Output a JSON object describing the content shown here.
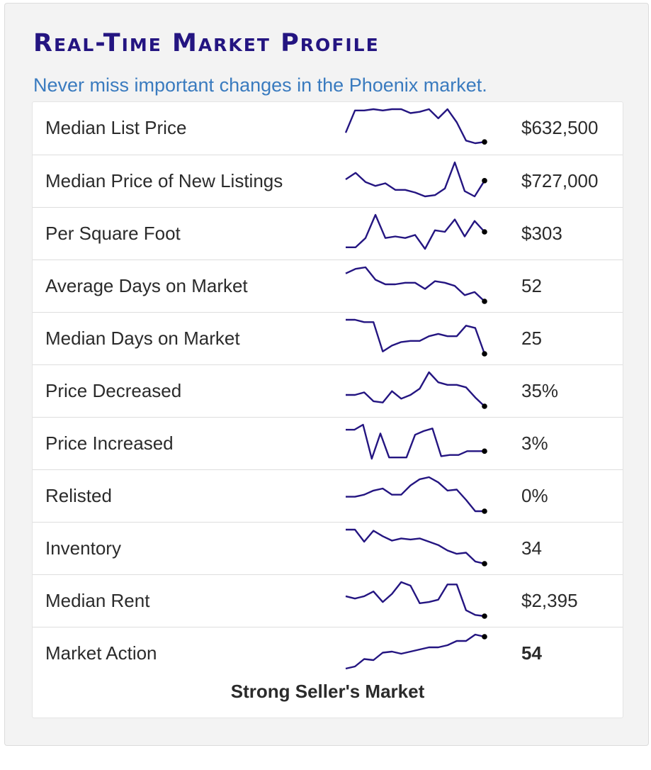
{
  "header": {
    "title": "Real-Time Market Profile",
    "subtitle": "Never miss important changes in the Phoenix market."
  },
  "line_color": "#241581",
  "rows": [
    {
      "label": "Median List Price",
      "value": "$632,500",
      "trend": [
        15,
        32,
        32,
        33,
        32,
        33,
        33,
        30,
        31,
        33,
        26,
        33,
        23,
        9,
        7,
        8
      ]
    },
    {
      "label": "Median Price of New Listings",
      "value": "$727,000",
      "trend": [
        19,
        24,
        17,
        14,
        16,
        11,
        11,
        9,
        6,
        7,
        12,
        32,
        10,
        6,
        18
      ]
    },
    {
      "label": "Per Square Foot",
      "value": "$303",
      "trend": [
        8,
        8,
        14,
        29,
        14,
        15,
        14,
        16,
        7,
        19,
        18,
        26,
        15,
        25,
        18
      ]
    },
    {
      "label": "Average Days on Market",
      "value": "52",
      "trend": [
        28,
        31,
        32,
        24,
        21,
        21,
        22,
        22,
        18,
        23,
        22,
        20,
        14,
        16,
        10
      ]
    },
    {
      "label": "Median Days on Market",
      "value": "25",
      "trend": [
        29,
        29,
        27,
        27,
        2,
        7,
        10,
        11,
        11,
        15,
        17,
        15,
        15,
        24,
        22,
        0
      ]
    },
    {
      "label": "Price Decreased",
      "value": "35%",
      "trend": [
        17,
        17,
        19,
        12,
        11,
        20,
        14,
        17,
        22,
        35,
        27,
        25,
        25,
        23,
        15,
        8
      ]
    },
    {
      "label": "Price Increased",
      "value": "3%",
      "trend": [
        26,
        26,
        30,
        3,
        23,
        4,
        4,
        4,
        22,
        25,
        27,
        5,
        6,
        6,
        9,
        9,
        9
      ]
    },
    {
      "label": "Relisted",
      "value": "0%",
      "trend": [
        14,
        14,
        16,
        20,
        22,
        16,
        16,
        25,
        31,
        33,
        28,
        20,
        21,
        11,
        0,
        0
      ]
    },
    {
      "label": "Inventory",
      "value": "34",
      "trend": [
        32,
        32,
        21,
        31,
        26,
        22,
        24,
        23,
        24,
        21,
        18,
        13,
        10,
        11,
        3,
        1
      ]
    },
    {
      "label": "Median Rent",
      "value": "$2,395",
      "trend": [
        17,
        15,
        17,
        21,
        12,
        19,
        29,
        26,
        11,
        12,
        14,
        27,
        27,
        5,
        1,
        0
      ]
    },
    {
      "label": "Market Action",
      "value": "54",
      "trend": [
        0,
        2,
        9,
        8,
        15,
        16,
        14,
        16,
        18,
        20,
        20,
        22,
        26,
        26,
        32,
        30
      ]
    }
  ],
  "footer": {
    "market_status": "Strong Seller's Market"
  }
}
